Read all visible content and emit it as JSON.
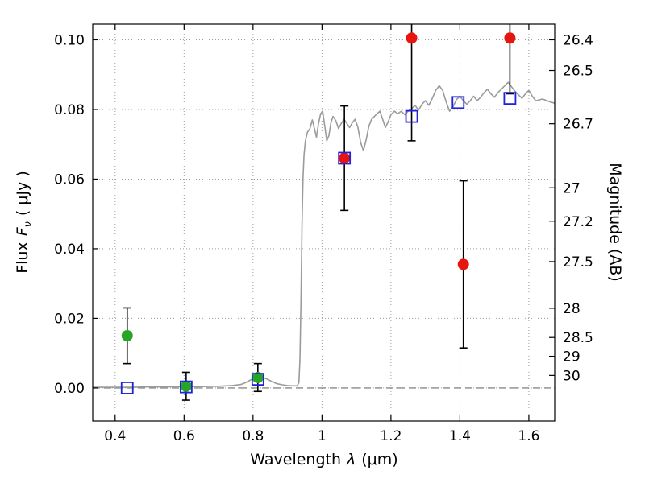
{
  "chart_data": {
    "type": "scatter",
    "title": "",
    "labels": {
      "x_prefix": "Wavelength",
      "x_symbol": "λ",
      "x_unit": "(μm)",
      "y_left_prefix": "Flux",
      "y_left_symbol": "F",
      "y_left_sub": "ν",
      "y_left_unit": "( μJy )",
      "y_right": "Magnitude (AB)"
    },
    "xlim": [
      0.335,
      1.675
    ],
    "ylim": [
      -0.0095,
      0.1045
    ],
    "x_ticks": [
      {
        "v": 0.4,
        "label": "0.4"
      },
      {
        "v": 0.6,
        "label": "0.6"
      },
      {
        "v": 0.8,
        "label": "0.8"
      },
      {
        "v": 1.0,
        "label": "1"
      },
      {
        "v": 1.2,
        "label": "1.2"
      },
      {
        "v": 1.4,
        "label": "1.4"
      },
      {
        "v": 1.6,
        "label": "1.6"
      }
    ],
    "y_ticks_left": [
      {
        "v": 0.0,
        "label": "0.00"
      },
      {
        "v": 0.02,
        "label": "0.02"
      },
      {
        "v": 0.04,
        "label": "0.04"
      },
      {
        "v": 0.06,
        "label": "0.06"
      },
      {
        "v": 0.08,
        "label": "0.08"
      },
      {
        "v": 0.1,
        "label": "0.10"
      }
    ],
    "y_ticks_right": [
      {
        "label": "26.4",
        "flux": 0.1
      },
      {
        "label": "26.5",
        "flux": 0.0912
      },
      {
        "label": "26.7",
        "flux": 0.0759
      },
      {
        "label": "27",
        "flux": 0.0575
      },
      {
        "label": "27.2",
        "flux": 0.0479
      },
      {
        "label": "27.5",
        "flux": 0.0363
      },
      {
        "label": "28",
        "flux": 0.0229
      },
      {
        "label": "28.5",
        "flux": 0.0145
      },
      {
        "label": "29",
        "flux": 0.0091
      },
      {
        "label": "30",
        "flux": 0.0036
      }
    ],
    "grid": {
      "show": true,
      "style": "dotted"
    },
    "zero_line_y": 0.0,
    "colors": {
      "background": "#ffffff",
      "frame": "#000000",
      "grid": "#9c9c9c",
      "zero_line": "#8a8a8a",
      "error_bar": "#000000"
    },
    "series": [
      {
        "name": "model-spectrum",
        "type": "line",
        "color": "#9b9b9b",
        "points": [
          [
            0.335,
            0.0002
          ],
          [
            0.4,
            0.0002
          ],
          [
            0.45,
            0.0002
          ],
          [
            0.5,
            0.0003
          ],
          [
            0.55,
            0.0003
          ],
          [
            0.6,
            0.0004
          ],
          [
            0.65,
            0.0004
          ],
          [
            0.7,
            0.0005
          ],
          [
            0.74,
            0.0007
          ],
          [
            0.765,
            0.001
          ],
          [
            0.78,
            0.0016
          ],
          [
            0.795,
            0.0024
          ],
          [
            0.81,
            0.003
          ],
          [
            0.825,
            0.0032
          ],
          [
            0.84,
            0.0026
          ],
          [
            0.855,
            0.0018
          ],
          [
            0.87,
            0.0012
          ],
          [
            0.885,
            0.0009
          ],
          [
            0.9,
            0.0007
          ],
          [
            0.915,
            0.0006
          ],
          [
            0.928,
            0.0006
          ],
          [
            0.933,
            0.0015
          ],
          [
            0.936,
            0.008
          ],
          [
            0.939,
            0.025
          ],
          [
            0.942,
            0.047
          ],
          [
            0.945,
            0.06
          ],
          [
            0.948,
            0.067
          ],
          [
            0.952,
            0.071
          ],
          [
            0.958,
            0.0735
          ],
          [
            0.965,
            0.0745
          ],
          [
            0.972,
            0.077
          ],
          [
            0.978,
            0.0745
          ],
          [
            0.984,
            0.072
          ],
          [
            0.99,
            0.076
          ],
          [
            0.996,
            0.0788
          ],
          [
            1.002,
            0.0795
          ],
          [
            1.008,
            0.0752
          ],
          [
            1.014,
            0.071
          ],
          [
            1.02,
            0.0725
          ],
          [
            1.026,
            0.0762
          ],
          [
            1.032,
            0.078
          ],
          [
            1.04,
            0.0768
          ],
          [
            1.048,
            0.0745
          ],
          [
            1.056,
            0.076
          ],
          [
            1.064,
            0.0772
          ],
          [
            1.072,
            0.076
          ],
          [
            1.08,
            0.0748
          ],
          [
            1.088,
            0.0762
          ],
          [
            1.096,
            0.0772
          ],
          [
            1.104,
            0.075
          ],
          [
            1.112,
            0.0705
          ],
          [
            1.12,
            0.0682
          ],
          [
            1.128,
            0.0712
          ],
          [
            1.136,
            0.0752
          ],
          [
            1.144,
            0.0772
          ],
          [
            1.152,
            0.078
          ],
          [
            1.16,
            0.0788
          ],
          [
            1.168,
            0.0795
          ],
          [
            1.176,
            0.0772
          ],
          [
            1.184,
            0.0748
          ],
          [
            1.192,
            0.0765
          ],
          [
            1.2,
            0.0785
          ],
          [
            1.21,
            0.0795
          ],
          [
            1.22,
            0.0788
          ],
          [
            1.23,
            0.0795
          ],
          [
            1.24,
            0.0785
          ],
          [
            1.25,
            0.0795
          ],
          [
            1.26,
            0.0802
          ],
          [
            1.27,
            0.0812
          ],
          [
            1.28,
            0.0798
          ],
          [
            1.29,
            0.0815
          ],
          [
            1.3,
            0.0825
          ],
          [
            1.31,
            0.0812
          ],
          [
            1.32,
            0.0832
          ],
          [
            1.33,
            0.0855
          ],
          [
            1.34,
            0.0868
          ],
          [
            1.35,
            0.0855
          ],
          [
            1.36,
            0.0822
          ],
          [
            1.37,
            0.0795
          ],
          [
            1.38,
            0.0808
          ],
          [
            1.39,
            0.0828
          ],
          [
            1.4,
            0.0838
          ],
          [
            1.41,
            0.0825
          ],
          [
            1.42,
            0.0815
          ],
          [
            1.43,
            0.0825
          ],
          [
            1.44,
            0.0838
          ],
          [
            1.45,
            0.0825
          ],
          [
            1.46,
            0.0835
          ],
          [
            1.47,
            0.0848
          ],
          [
            1.48,
            0.0858
          ],
          [
            1.49,
            0.0845
          ],
          [
            1.5,
            0.0835
          ],
          [
            1.51,
            0.0848
          ],
          [
            1.52,
            0.0858
          ],
          [
            1.53,
            0.0868
          ],
          [
            1.54,
            0.0878
          ],
          [
            1.55,
            0.0865
          ],
          [
            1.56,
            0.0852
          ],
          [
            1.57,
            0.0842
          ],
          [
            1.58,
            0.0832
          ],
          [
            1.59,
            0.0845
          ],
          [
            1.6,
            0.0855
          ],
          [
            1.61,
            0.0838
          ],
          [
            1.62,
            0.0825
          ],
          [
            1.64,
            0.083
          ],
          [
            1.66,
            0.0822
          ],
          [
            1.675,
            0.0818
          ]
        ]
      },
      {
        "name": "observed-optical",
        "type": "scatter",
        "marker": "circle",
        "color": "#27a527",
        "points": [
          {
            "x": 0.435,
            "y": 0.015,
            "err_lo": 0.008,
            "err_hi": 0.008
          },
          {
            "x": 0.606,
            "y": 0.0005,
            "err_lo": 0.004,
            "err_hi": 0.004
          },
          {
            "x": 0.814,
            "y": 0.003,
            "err_lo": 0.004,
            "err_hi": 0.004
          }
        ]
      },
      {
        "name": "observed-infrared",
        "type": "scatter",
        "marker": "circle",
        "color": "#e8150f",
        "points": [
          {
            "x": 1.065,
            "y": 0.066,
            "err_lo": 0.015,
            "err_hi": 0.015
          },
          {
            "x": 1.26,
            "y": 0.1005,
            "err_lo": 0.0295,
            "err_hi": 0.0295
          },
          {
            "x": 1.41,
            "y": 0.0355,
            "err_lo": 0.024,
            "err_hi": 0.024
          },
          {
            "x": 1.545,
            "y": 0.1005,
            "err_lo": 0.016,
            "err_hi": 0.016
          }
        ]
      },
      {
        "name": "model-photometry",
        "type": "scatter",
        "marker": "open-square",
        "color": "#2222dd",
        "points": [
          {
            "x": 0.435,
            "y": 0.0
          },
          {
            "x": 0.606,
            "y": 0.0003
          },
          {
            "x": 0.814,
            "y": 0.0025
          },
          {
            "x": 1.065,
            "y": 0.066
          },
          {
            "x": 1.26,
            "y": 0.078
          },
          {
            "x": 1.395,
            "y": 0.082
          },
          {
            "x": 1.545,
            "y": 0.0832
          }
        ]
      }
    ]
  }
}
